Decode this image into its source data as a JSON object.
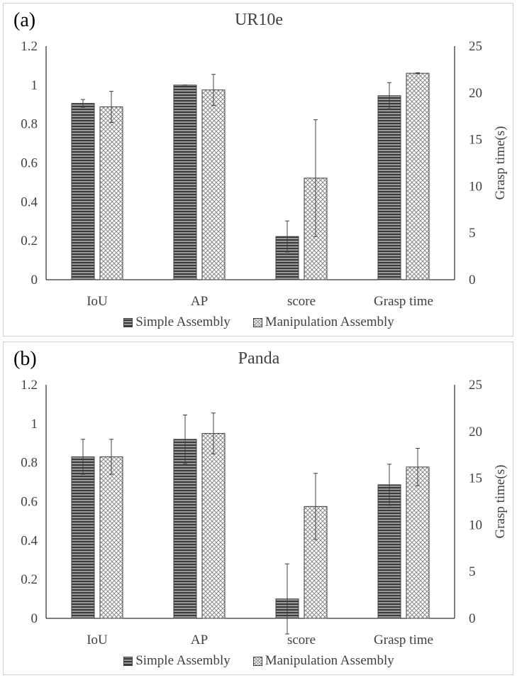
{
  "chart_data": [
    {
      "type": "bar",
      "panel_label": "(a)",
      "title": "UR10e",
      "categories": [
        "IoU",
        "AP",
        "score",
        "Grasp time"
      ],
      "series": [
        {
          "name": "Simple Assembly",
          "values": [
            0.906,
            1.0,
            0.222,
            19.7
          ],
          "errors": [
            0.02,
            0.0,
            0.08,
            1.4
          ]
        },
        {
          "name": "Manipulation Assembly",
          "values": [
            0.888,
            0.975,
            0.522,
            22.1
          ],
          "errors": [
            0.08,
            0.08,
            0.3,
            0.05
          ]
        }
      ],
      "ylim_left": [
        0,
        1.2
      ],
      "left_ticks": [
        "0",
        "0.2",
        "0.4",
        "0.6",
        "0.8",
        "1",
        "1.2"
      ],
      "ylim_right": [
        0,
        25
      ],
      "right_ticks": [
        "0",
        "5",
        "10",
        "15",
        "20",
        "25"
      ],
      "ylabel_right": "Grasp time(s)",
      "right_axis_category": "Grasp time",
      "legend": [
        "Simple Assembly",
        "Manipulation Assembly"
      ]
    },
    {
      "type": "bar",
      "panel_label": "(b)",
      "title": "Panda",
      "categories": [
        "IoU",
        "AP",
        "score",
        "Grasp time"
      ],
      "series": [
        {
          "name": "Simple Assembly",
          "values": [
            0.83,
            0.92,
            0.1,
            14.3
          ],
          "errors": [
            0.09,
            0.125,
            0.18,
            2.2
          ]
        },
        {
          "name": "Manipulation Assembly",
          "values": [
            0.83,
            0.95,
            0.575,
            16.2
          ],
          "errors": [
            0.09,
            0.105,
            0.17,
            2.0
          ]
        }
      ],
      "ylim_left": [
        0,
        1.2
      ],
      "left_ticks": [
        "0",
        "0.2",
        "0.4",
        "0.6",
        "0.8",
        "1",
        "1.2"
      ],
      "ylim_right": [
        0,
        25
      ],
      "right_ticks": [
        "0",
        "5",
        "10",
        "15",
        "20",
        "25"
      ],
      "ylabel_right": "Grasp time(s)",
      "right_axis_category": "Grasp time",
      "legend": [
        "Simple Assembly",
        "Manipulation Assembly"
      ]
    }
  ]
}
